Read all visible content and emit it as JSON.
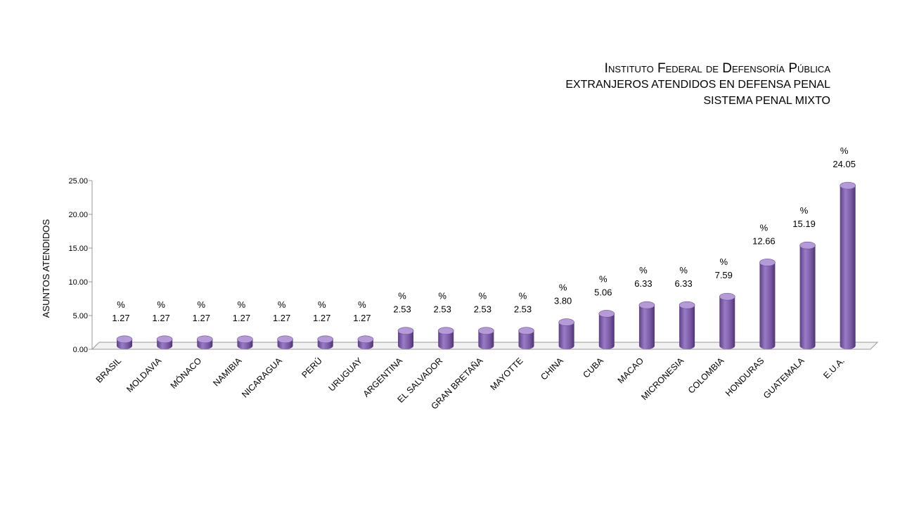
{
  "title": {
    "line1": "Instituto Federal de Defensoría Pública",
    "line2": "EXTRANJEROS ATENDIDOS EN DEFENSA PENAL",
    "line3": "SISTEMA PENAL MIXTO"
  },
  "chart_data": {
    "type": "bar",
    "style": "3d-cylinder",
    "ylabel": "ASUNTOS ATENDIDOS",
    "xlabel": "",
    "ylim": [
      0,
      25
    ],
    "yticks": [
      "0.00",
      "5.00",
      "10.00",
      "15.00",
      "20.00",
      "25.00"
    ],
    "grid": false,
    "legend": "none",
    "bar_color": "#7b5aa6",
    "value_prefix": "%",
    "categories": [
      "BRASIL",
      "MOLDAVIA",
      "MÓNACO",
      "NAMIBIA",
      "NICARAGUA",
      "PERÚ",
      "URUGUAY",
      "ARGENTINA",
      "EL SALVADOR",
      "GRAN BRETAÑA",
      "MAYOTTE",
      "CHINA",
      "CUBA",
      "MACAO",
      "MICRONESIA",
      "COLOMBIA",
      "HONDURAS",
      "GUATEMALA",
      "E.U.A."
    ],
    "values": [
      1.27,
      1.27,
      1.27,
      1.27,
      1.27,
      1.27,
      1.27,
      2.53,
      2.53,
      2.53,
      2.53,
      3.8,
      5.06,
      6.33,
      6.33,
      7.59,
      12.66,
      15.19,
      24.05
    ],
    "value_labels": [
      "1.27",
      "1.27",
      "1.27",
      "1.27",
      "1.27",
      "1.27",
      "1.27",
      "2.53",
      "2.53",
      "2.53",
      "2.53",
      "3.80",
      "5.06",
      "6.33",
      "6.33",
      "7.59",
      "12.66",
      "15.19",
      "24.05"
    ]
  }
}
